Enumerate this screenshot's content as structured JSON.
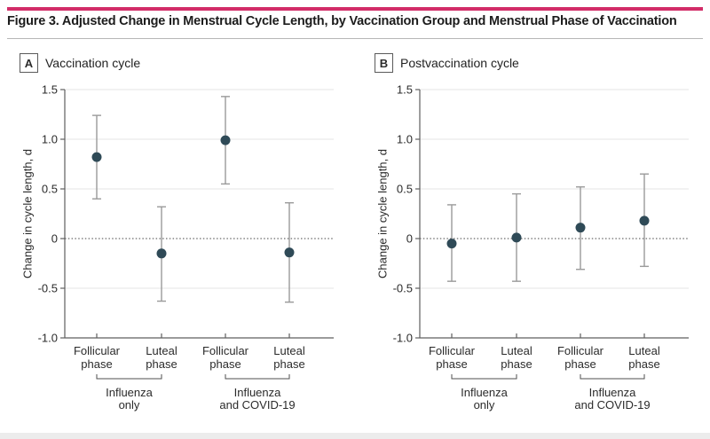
{
  "figure": {
    "title": "Figure 3. Adjusted Change in Menstrual Cycle Length, by Vaccination Group and Menstrual Phase of Vaccination",
    "accent_color": "#d22d68",
    "divider_color": "#b6b6b6"
  },
  "chart_data": [
    {
      "type": "scatter",
      "panel_label": "A",
      "panel_title": "Vaccination cycle",
      "ylabel": "Change in cycle length, d",
      "ylim": [
        -1.0,
        1.5
      ],
      "yticks": [
        1.5,
        1.0,
        0.5,
        0,
        -0.5,
        -1.0
      ],
      "ytick_labels": [
        "1.5",
        "1.0",
        "0.5",
        "0",
        "-0.5",
        "-1.0"
      ],
      "zero_reference_line": "dotted",
      "grid": true,
      "legend": "none",
      "categories": [
        "Follicular phase",
        "Luteal phase",
        "Follicular phase",
        "Luteal phase"
      ],
      "category_label_lines": [
        [
          "Follicular",
          "phase"
        ],
        [
          "Luteal",
          "phase"
        ],
        [
          "Follicular",
          "phase"
        ],
        [
          "Luteal",
          "phase"
        ]
      ],
      "groups": [
        {
          "label": "Influenza only",
          "label_lines": [
            "Influenza",
            "only"
          ],
          "span": [
            0,
            1
          ]
        },
        {
          "label": "Influenza and COVID-19",
          "label_lines": [
            "Influenza",
            "and COVID-19"
          ],
          "span": [
            2,
            3
          ]
        }
      ],
      "points": [
        {
          "category": "Follicular phase",
          "group": "Influenza only",
          "value": 0.82,
          "ci_low": 0.4,
          "ci_high": 1.24
        },
        {
          "category": "Luteal phase",
          "group": "Influenza only",
          "value": -0.15,
          "ci_low": -0.63,
          "ci_high": 0.32
        },
        {
          "category": "Follicular phase",
          "group": "Influenza and COVID-19",
          "value": 0.99,
          "ci_low": 0.55,
          "ci_high": 1.43
        },
        {
          "category": "Luteal phase",
          "group": "Influenza and COVID-19",
          "value": -0.14,
          "ci_low": -0.64,
          "ci_high": 0.36
        }
      ],
      "marker_color": "#2f4a57",
      "error_bar_color": "#9a9a9a"
    },
    {
      "type": "scatter",
      "panel_label": "B",
      "panel_title": "Postvaccination cycle",
      "ylabel": "Change in cycle length, d",
      "ylim": [
        -1.0,
        1.5
      ],
      "yticks": [
        1.5,
        1.0,
        0.5,
        0,
        -0.5,
        -1.0
      ],
      "ytick_labels": [
        "1.5",
        "1.0",
        "0.5",
        "0",
        "-0.5",
        "-1.0"
      ],
      "zero_reference_line": "dotted",
      "grid": true,
      "legend": "none",
      "categories": [
        "Follicular phase",
        "Luteal phase",
        "Follicular phase",
        "Luteal phase"
      ],
      "category_label_lines": [
        [
          "Follicular",
          "phase"
        ],
        [
          "Luteal",
          "phase"
        ],
        [
          "Follicular",
          "phase"
        ],
        [
          "Luteal",
          "phase"
        ]
      ],
      "groups": [
        {
          "label": "Influenza only",
          "label_lines": [
            "Influenza",
            "only"
          ],
          "span": [
            0,
            1
          ]
        },
        {
          "label": "Influenza and COVID-19",
          "label_lines": [
            "Influenza",
            "and COVID-19"
          ],
          "span": [
            2,
            3
          ]
        }
      ],
      "points": [
        {
          "category": "Follicular phase",
          "group": "Influenza only",
          "value": -0.05,
          "ci_low": -0.43,
          "ci_high": 0.34
        },
        {
          "category": "Luteal phase",
          "group": "Influenza only",
          "value": 0.01,
          "ci_low": -0.43,
          "ci_high": 0.45
        },
        {
          "category": "Follicular phase",
          "group": "Influenza and COVID-19",
          "value": 0.11,
          "ci_low": -0.31,
          "ci_high": 0.52
        },
        {
          "category": "Luteal phase",
          "group": "Influenza and COVID-19",
          "value": 0.18,
          "ci_low": -0.28,
          "ci_high": 0.65
        }
      ],
      "marker_color": "#2f4a57",
      "error_bar_color": "#9a9a9a"
    }
  ]
}
